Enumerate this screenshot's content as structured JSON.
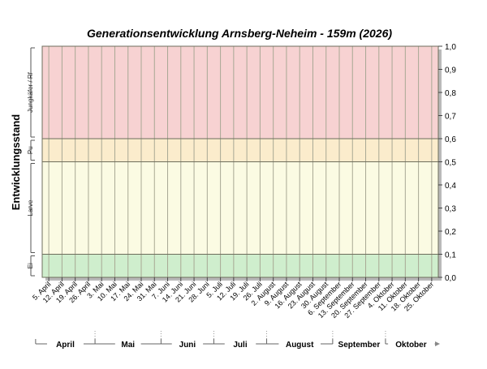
{
  "chart_data": {
    "type": "area",
    "title": "Generationsentwicklung Arnsberg-Neheim - 159m (2026)",
    "ylabel": "Entwicklungsstand",
    "ylim": [
      0,
      1.0
    ],
    "yticks": [
      "0,0",
      "0,1",
      "0,2",
      "0,3",
      "0,4",
      "0,5",
      "0,6",
      "0,7",
      "0,8",
      "0,9",
      "1,0"
    ],
    "grid": true,
    "bands": [
      {
        "name": "Ei",
        "from": 0.0,
        "to": 0.1,
        "color": "#cfeecd"
      },
      {
        "name": "Larve",
        "from": 0.1,
        "to": 0.5,
        "color": "#fbfbe3"
      },
      {
        "name": "Pu",
        "from": 0.5,
        "to": 0.6,
        "color": "#fbeccc"
      },
      {
        "name": "Jungkäfer / Rf",
        "from": 0.6,
        "to": 1.0,
        "color": "#f7d2d2"
      }
    ],
    "x_dates": [
      "5. April",
      "12. April",
      "19. April",
      "26. April",
      "3. Mai",
      "10. Mai",
      "17. Mai",
      "24. Mai",
      "31. Mai",
      "7. Juni",
      "14. Juni",
      "21. Juni",
      "28. Juni",
      "5. Juli",
      "12. Juli",
      "19. Juli",
      "26. Juli",
      "2. August",
      "9. August",
      "16. August",
      "23. August",
      "30. August",
      "6. September",
      "13. September",
      "20. September",
      "27. September",
      "4. Oktober",
      "11. Oktober",
      "18. Oktober",
      "25. Oktober"
    ],
    "months": [
      "April",
      "Mai",
      "Juni",
      "Juli",
      "August",
      "September",
      "Oktober"
    ],
    "series": []
  }
}
